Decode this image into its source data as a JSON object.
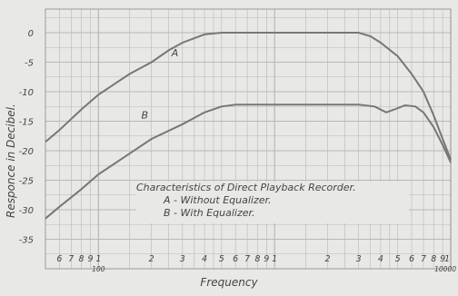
{
  "chart_data": {
    "type": "line",
    "title": "",
    "xlabel": "Frequency",
    "ylabel": "Responce in Decibel.",
    "xscale": "log",
    "xlim": [
      50,
      10000
    ],
    "ylim": [
      -40,
      4
    ],
    "grid": true,
    "yticks": [
      0,
      -5,
      -10,
      -15,
      -20,
      -25,
      -30,
      -35
    ],
    "ytick_labels": [
      "0",
      "-5",
      "-10",
      "-15",
      "-20",
      "-25",
      "-30",
      "-35"
    ],
    "xtick_labels": [
      {
        "x": 60,
        "label": "6"
      },
      {
        "x": 70,
        "label": "7"
      },
      {
        "x": 80,
        "label": "8"
      },
      {
        "x": 90,
        "label": "9"
      },
      {
        "x": 100,
        "label": "1"
      },
      {
        "x": 200,
        "label": "2"
      },
      {
        "x": 300,
        "label": "3"
      },
      {
        "x": 400,
        "label": "4"
      },
      {
        "x": 500,
        "label": "5"
      },
      {
        "x": 600,
        "label": "6"
      },
      {
        "x": 700,
        "label": "7"
      },
      {
        "x": 800,
        "label": "8"
      },
      {
        "x": 900,
        "label": "9"
      },
      {
        "x": 1000,
        "label": "1"
      },
      {
        "x": 2000,
        "label": "2"
      },
      {
        "x": 3000,
        "label": "3"
      },
      {
        "x": 4000,
        "label": "4"
      },
      {
        "x": 5000,
        "label": "5"
      },
      {
        "x": 6000,
        "label": "6"
      },
      {
        "x": 7000,
        "label": "7"
      },
      {
        "x": 8000,
        "label": "8"
      },
      {
        "x": 9000,
        "label": "9"
      },
      {
        "x": 10000,
        "label": "1"
      }
    ],
    "decade_labels": [
      {
        "x": 100,
        "label": "100"
      },
      {
        "x": 10000,
        "label": "10000"
      }
    ],
    "series": [
      {
        "name": "A",
        "points": [
          [
            50,
            -18.5
          ],
          [
            60,
            -16.5
          ],
          [
            80,
            -13
          ],
          [
            100,
            -10.5
          ],
          [
            150,
            -7
          ],
          [
            200,
            -5
          ],
          [
            250,
            -3
          ],
          [
            300,
            -1.7
          ],
          [
            400,
            -0.3
          ],
          [
            500,
            0
          ],
          [
            1000,
            0
          ],
          [
            2000,
            0
          ],
          [
            3000,
            0
          ],
          [
            3500,
            -0.6
          ],
          [
            4000,
            -1.7
          ],
          [
            5000,
            -4
          ],
          [
            6000,
            -7
          ],
          [
            7000,
            -10
          ],
          [
            8000,
            -14
          ],
          [
            9000,
            -18
          ],
          [
            10000,
            -21.5
          ]
        ]
      },
      {
        "name": "B",
        "points": [
          [
            50,
            -31.5
          ],
          [
            60,
            -29.5
          ],
          [
            80,
            -26.5
          ],
          [
            100,
            -24
          ],
          [
            150,
            -20.5
          ],
          [
            200,
            -18
          ],
          [
            300,
            -15.5
          ],
          [
            400,
            -13.5
          ],
          [
            500,
            -12.5
          ],
          [
            600,
            -12.2
          ],
          [
            1000,
            -12.2
          ],
          [
            2000,
            -12.2
          ],
          [
            3000,
            -12.2
          ],
          [
            3700,
            -12.5
          ],
          [
            4300,
            -13.5
          ],
          [
            4800,
            -13
          ],
          [
            5500,
            -12.3
          ],
          [
            6300,
            -12.5
          ],
          [
            7000,
            -13.5
          ],
          [
            8000,
            -16
          ],
          [
            9000,
            -19
          ],
          [
            10000,
            -22
          ]
        ]
      }
    ],
    "legend": {
      "title": "Characteristics of Direct Playback Recorder.",
      "lines": [
        "A - Without Equalizer.",
        "B - With Equalizer."
      ],
      "placement": "bottom-center"
    },
    "colors": {
      "curve": "#777777",
      "grid": "#b8b8b6",
      "text": "#444444",
      "background": "#e8e8e6"
    }
  }
}
